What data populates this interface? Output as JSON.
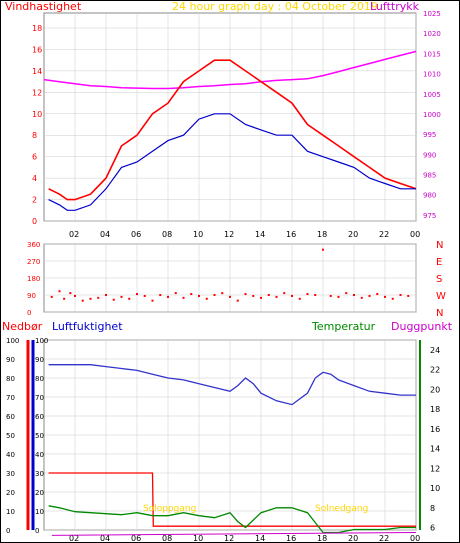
{
  "header": {
    "left": "Vindhastighet",
    "center": "24 hour graph day : 04 October 2019",
    "right": "Lufttrykk"
  },
  "lower_header": {
    "nedbor": "Nedbør",
    "luftfuktighet": "Luftfuktighet",
    "temperatur": "Temperatur",
    "duggpunkt": "Duggpunkt"
  },
  "annotations": {
    "sunrise": "Soloppgang",
    "sunset": "Solnedgang"
  },
  "colors": {
    "wind": "#ff0000",
    "wind_avg": "#0000cc",
    "pressure": "#ff00ff",
    "header_date": "#ffd700",
    "humidity": "#3333cc",
    "rain": "#ff0000",
    "temperature": "#008800",
    "dewpoint": "#cc00cc",
    "grid": "#cccccc",
    "sun_label": "#ffd700"
  },
  "chart_data": [
    {
      "type": "line",
      "title": "24 hour graph day : 04 October 2019",
      "x_ticks": [
        "02",
        "04",
        "06",
        "08",
        "10",
        "12",
        "14",
        "16",
        "18",
        "20",
        "22",
        "00"
      ],
      "xlim": [
        0,
        24
      ],
      "y_left": {
        "label": "Vindhastighet",
        "ticks": [
          0,
          2,
          4,
          6,
          8,
          10,
          12,
          14,
          16,
          18
        ],
        "lim": [
          0,
          19.4
        ]
      },
      "y_right": {
        "label": "Lufttrykk",
        "ticks": [
          975,
          980,
          985,
          990,
          995,
          1000,
          1005,
          1010,
          1015,
          1020,
          1025
        ],
        "lim": [
          973.5,
          1025
        ]
      },
      "series": [
        {
          "name": "Vindhastighet",
          "x": [
            0.3,
            1,
            1.5,
            2,
            3,
            4,
            5,
            6,
            7,
            8,
            9,
            10,
            11,
            12,
            13,
            14,
            15,
            16,
            17,
            18,
            19,
            20,
            21,
            22,
            23,
            24
          ],
          "values": [
            3,
            2.5,
            2,
            2,
            2.5,
            4,
            7,
            8,
            10,
            11,
            13,
            14,
            15,
            15,
            14,
            13,
            12,
            11,
            9,
            8,
            7,
            6,
            5,
            4,
            3.5,
            3
          ]
        },
        {
          "name": "Vindhastighet (middel)",
          "x": [
            0.3,
            1,
            1.5,
            2,
            3,
            4,
            5,
            6,
            7,
            8,
            9,
            10,
            11,
            12,
            13,
            14,
            15,
            16,
            17,
            18,
            19,
            20,
            21,
            22,
            23,
            24
          ],
          "values": [
            2,
            1.5,
            1,
            1,
            1.5,
            3,
            5,
            5.5,
            6.5,
            7.5,
            8,
            9.5,
            10,
            10,
            9,
            8.5,
            8,
            8,
            6.5,
            6,
            5.5,
            5,
            4,
            3.5,
            3,
            3
          ]
        },
        {
          "name": "Lufttrykk",
          "x": [
            0,
            1,
            2,
            3,
            4,
            5,
            6,
            7,
            8,
            9,
            10,
            11,
            12,
            13,
            14,
            15,
            16,
            17,
            18,
            19,
            20,
            21,
            22,
            23,
            24
          ],
          "values": [
            1008.5,
            1008,
            1007.5,
            1007,
            1006.8,
            1006.5,
            1006.4,
            1006.3,
            1006.3,
            1006.5,
            1006.8,
            1007,
            1007.3,
            1007.5,
            1008,
            1008.3,
            1008.5,
            1008.7,
            1009.5,
            1010.5,
            1011.5,
            1012.5,
            1013.5,
            1014.5,
            1015.5
          ]
        }
      ]
    },
    {
      "type": "scatter",
      "y_ticks": [
        0,
        90,
        180,
        270,
        360
      ],
      "y_ticks_right": [
        "N",
        "W",
        "S",
        "E",
        "N"
      ],
      "ylim": [
        0,
        360
      ],
      "series": [
        {
          "name": "Vindretning",
          "x": [
            0.5,
            1,
            1.3,
            1.7,
            2,
            2.5,
            3,
            3.5,
            4,
            4.5,
            5,
            5.5,
            6,
            6.5,
            7,
            7.5,
            8,
            8.5,
            9,
            9.5,
            10,
            10.5,
            11,
            11.5,
            12,
            12.5,
            13,
            13.5,
            14,
            14.5,
            15,
            15.5,
            16,
            16.5,
            17,
            17.5,
            18,
            18.5,
            19,
            19.5,
            20,
            20.5,
            21,
            21.5,
            22,
            22.5,
            23,
            23.5
          ],
          "values": [
            80,
            110,
            70,
            100,
            85,
            60,
            70,
            75,
            90,
            65,
            80,
            70,
            95,
            85,
            60,
            90,
            80,
            100,
            75,
            95,
            85,
            70,
            90,
            100,
            80,
            60,
            95,
            85,
            75,
            90,
            80,
            100,
            85,
            70,
            95,
            90,
            330,
            85,
            80,
            100,
            90,
            75,
            85,
            95,
            80,
            70,
            90,
            85
          ]
        }
      ]
    },
    {
      "type": "line",
      "x_ticks": [
        "02",
        "04",
        "06",
        "08",
        "10",
        "12",
        "14",
        "16",
        "18",
        "20",
        "22",
        "00"
      ],
      "xlim": [
        0,
        24
      ],
      "y_nedbor": {
        "label": "Nedbør",
        "ticks": [
          0,
          10,
          20,
          30,
          40,
          50,
          60,
          70,
          80,
          90,
          100
        ],
        "lim": [
          0,
          100
        ]
      },
      "y_humidity": {
        "label": "Luftfuktighet",
        "ticks": [
          0,
          10,
          20,
          30,
          40,
          50,
          60,
          70,
          80,
          90,
          100
        ],
        "lim": [
          0,
          100
        ]
      },
      "y_temperature": {
        "label": "Temperatur",
        "ticks": [
          6,
          8,
          10,
          12,
          14,
          16,
          18,
          20,
          22,
          24
        ],
        "lim": [
          5.75,
          25
        ]
      },
      "series": [
        {
          "name": "Luftfuktighet",
          "x": [
            0.3,
            1,
            2,
            3,
            4,
            5,
            6,
            7,
            8,
            9,
            10,
            11,
            12,
            12.5,
            13,
            13.5,
            14,
            15,
            16,
            17,
            17.5,
            18,
            18.5,
            19,
            20,
            21,
            22,
            23,
            24
          ],
          "values": [
            87,
            87,
            87,
            87,
            86,
            85,
            84,
            82,
            80,
            79,
            77,
            75,
            73,
            76,
            80,
            77,
            72,
            68,
            66,
            72,
            80,
            83,
            82,
            79,
            76,
            73,
            72,
            71,
            71
          ]
        },
        {
          "name": "Nedbør",
          "x": [
            0.3,
            7,
            7.05,
            24
          ],
          "values": [
            30,
            30,
            2,
            2
          ]
        },
        {
          "name": "Temperatur",
          "x": [
            0.3,
            1,
            2,
            3,
            4,
            5,
            6,
            7,
            8,
            9,
            10,
            11,
            12,
            12.5,
            13,
            14,
            15,
            16,
            17,
            17.5,
            18,
            19,
            20,
            21,
            22,
            23,
            24
          ],
          "values": [
            8.2,
            8,
            7.6,
            7.5,
            7.4,
            7.3,
            7.5,
            7.2,
            7.2,
            7.5,
            7.2,
            7.0,
            7.5,
            6.6,
            6.0,
            7.5,
            8.0,
            8.0,
            7.5,
            6.5,
            5.5,
            5.5,
            5.8,
            5.8,
            5.8,
            6.0,
            6.0
          ]
        },
        {
          "name": "Duggpunkt",
          "x": [
            0.5,
            24
          ],
          "values": [
            5.2,
            5.5
          ]
        }
      ]
    }
  ]
}
